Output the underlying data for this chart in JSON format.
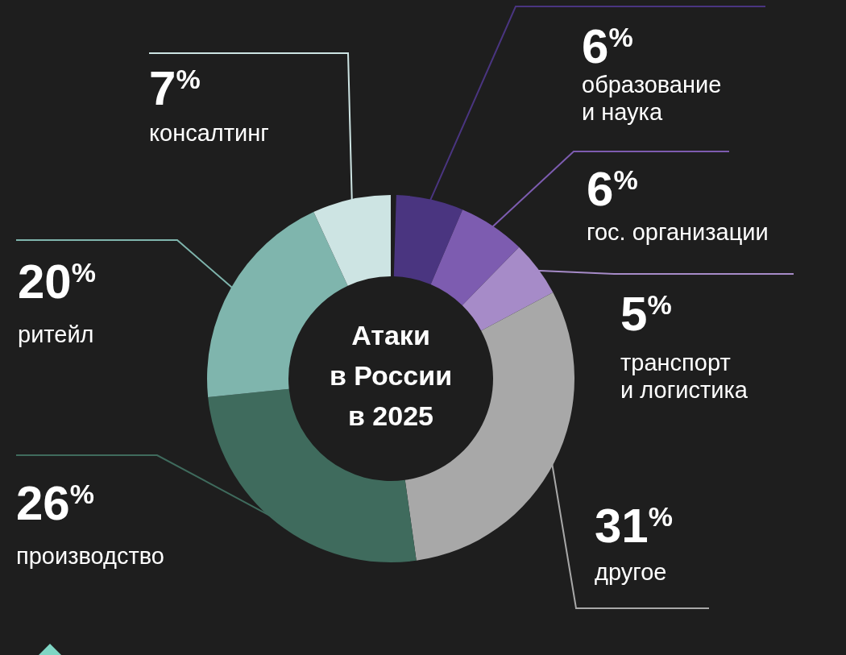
{
  "chart_data": {
    "type": "donut",
    "title": "Атаки в России в 2025",
    "categories": [
      "образование и наука",
      "гос. организации",
      "транспорт и логистика",
      "другое",
      "производство",
      "ритейл",
      "консалтинг"
    ],
    "values": [
      6,
      6,
      5,
      31,
      26,
      20,
      7
    ],
    "value_labels": [
      "6$^{%}$",
      "6$^{%}$",
      "5$^{%}$",
      "31$^{%}$",
      "26$^{%}$",
      "20$^{%}$",
      "7$^{%}$"
    ],
    "colors": [
      "#4a3580",
      "#7d5cb0",
      "#a68bc8",
      "#a8a8a8",
      "#3f6b5d",
      "#7fb5ad",
      "#cde4e3"
    ]
  }
}
